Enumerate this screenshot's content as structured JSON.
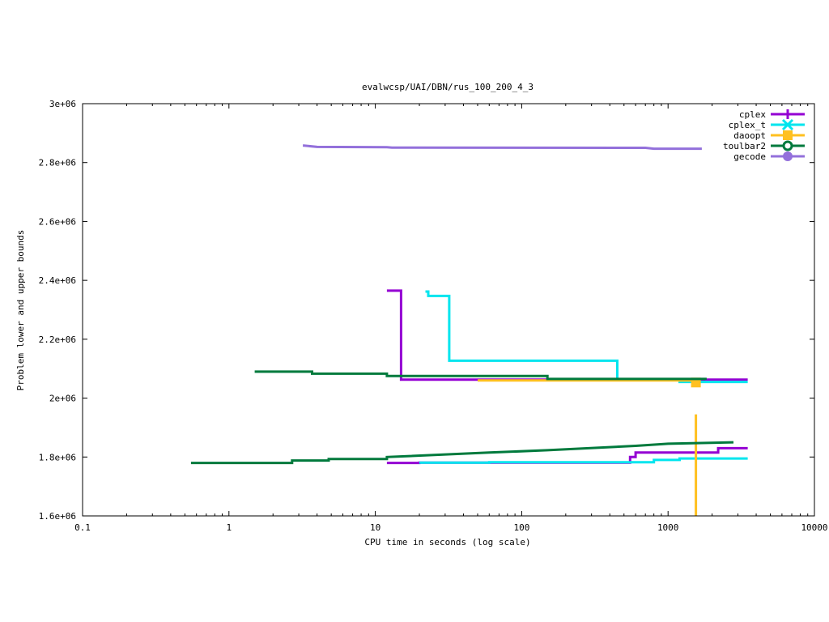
{
  "chart_data": {
    "type": "line",
    "title": "evalwcsp/UAI/DBN/rus_100_200_4_3",
    "xlabel": "CPU time in seconds (log scale)",
    "ylabel": "Problem lower and upper bounds",
    "xscale": "log",
    "xlim": [
      0.1,
      10000
    ],
    "ylim": [
      1600000,
      3000000
    ],
    "x_ticks": [
      0.1,
      1,
      10,
      100,
      1000,
      10000
    ],
    "x_tick_labels": [
      "0.1",
      "1",
      "10",
      "100",
      "1000",
      "10000"
    ],
    "y_ticks": [
      1600000,
      1800000,
      2000000,
      2200000,
      2400000,
      2600000,
      2800000,
      3000000
    ],
    "y_tick_labels": [
      "1.6e+06",
      "1.8e+06",
      "2e+06",
      "2.2e+06",
      "2.4e+06",
      "2.6e+06",
      "2.8e+06",
      "3e+06"
    ],
    "grid": false,
    "legend_position": "top-right",
    "series": [
      {
        "name": "cplex",
        "color": "#9400d3",
        "marker": "plus",
        "upper": [
          [
            12,
            2365000
          ],
          [
            15,
            2365000
          ],
          [
            15,
            2063000
          ],
          [
            3500,
            2063000
          ]
        ],
        "lower": [
          [
            12,
            1780000
          ],
          [
            20,
            1780000
          ],
          [
            20,
            1781000
          ],
          [
            550,
            1781000
          ],
          [
            550,
            1800000
          ],
          [
            600,
            1800000
          ],
          [
            600,
            1815000
          ],
          [
            2200,
            1815000
          ],
          [
            2200,
            1830000
          ],
          [
            3500,
            1830000
          ]
        ]
      },
      {
        "name": "cplex_t",
        "color": "#00e5ee",
        "marker": "cross",
        "upper": [
          [
            22,
            2362000
          ],
          [
            23,
            2362000
          ],
          [
            23,
            2347000
          ],
          [
            32,
            2347000
          ],
          [
            32,
            2127000
          ],
          [
            450,
            2127000
          ],
          [
            450,
            2063000
          ],
          [
            1200,
            2063000
          ],
          [
            1200,
            2055000
          ],
          [
            3500,
            2055000
          ]
        ],
        "lower": [
          [
            20,
            1781000
          ],
          [
            60,
            1781000
          ],
          [
            60,
            1782000
          ],
          [
            800,
            1782000
          ],
          [
            800,
            1790000
          ],
          [
            1200,
            1790000
          ],
          [
            1200,
            1795000
          ],
          [
            3500,
            1795000
          ]
        ]
      },
      {
        "name": "daoopt",
        "color": "#ffc020",
        "marker": "square",
        "upper": [
          [
            50,
            2060000
          ],
          [
            1550,
            2060000
          ]
        ],
        "lower": [
          [
            1550,
            1600000
          ],
          [
            1550,
            1945000
          ]
        ],
        "point": [
          1550,
          2053000
        ]
      },
      {
        "name": "toulbar2",
        "color": "#007a3d",
        "marker": "circle-open",
        "upper": [
          [
            1.5,
            2090000
          ],
          [
            3.7,
            2090000
          ],
          [
            3.7,
            2083000
          ],
          [
            12,
            2083000
          ],
          [
            12,
            2075000
          ],
          [
            150,
            2075000
          ],
          [
            150,
            2065000
          ],
          [
            1800,
            2065000
          ],
          [
            1800,
            2062000
          ]
        ],
        "lower": [
          [
            0.55,
            1780000
          ],
          [
            2.7,
            1780000
          ],
          [
            2.7,
            1788000
          ],
          [
            4.8,
            1788000
          ],
          [
            4.8,
            1793000
          ],
          [
            12,
            1793000
          ],
          [
            12,
            1800000
          ],
          [
            60,
            1815000
          ],
          [
            150,
            1823000
          ],
          [
            600,
            1838000
          ],
          [
            1000,
            1845000
          ],
          [
            2800,
            1850000
          ]
        ]
      },
      {
        "name": "gecode",
        "color": "#9370db",
        "marker": "circle-filled",
        "upper": [
          [
            3.2,
            2858000
          ],
          [
            4,
            2853000
          ],
          [
            12,
            2852000
          ],
          [
            13,
            2851000
          ],
          [
            700,
            2850000
          ],
          [
            800,
            2847000
          ],
          [
            1700,
            2847000
          ]
        ],
        "lower": []
      }
    ]
  }
}
